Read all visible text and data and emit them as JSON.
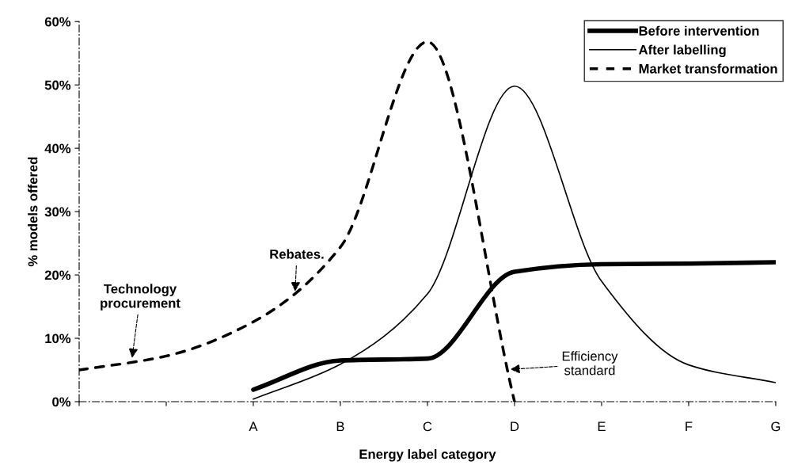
{
  "chart_data": {
    "type": "line",
    "xlabel": "Energy label category",
    "ylabel": "% models offered",
    "categories": [
      null,
      null,
      "A",
      "B",
      "C",
      "D",
      "E",
      "F",
      "G"
    ],
    "ylim": [
      0,
      60
    ],
    "yticks": [
      {
        "value": 0,
        "label": "0%"
      },
      {
        "value": 10,
        "label": "10%"
      },
      {
        "value": 20,
        "label": "20%"
      },
      {
        "value": 30,
        "label": "30%"
      },
      {
        "value": 40,
        "label": "40%"
      },
      {
        "value": 50,
        "label": "50%"
      },
      {
        "value": 60,
        "label": "60%"
      }
    ],
    "grid": false,
    "legend": "top right",
    "marker": "none",
    "series": [
      {
        "name": "Before intervention",
        "color": "#000000",
        "line_style": "solid",
        "values": [
          null,
          null,
          1.9,
          6.5,
          6.8,
          20.5,
          21.7,
          21.8,
          22.0
        ]
      },
      {
        "name": "After labelling",
        "color": "#000000",
        "line_style": "solid",
        "values": [
          null,
          null,
          0.4,
          5.9,
          17,
          49.8,
          19,
          5.8,
          3.0
        ]
      },
      {
        "name": "Market transformation",
        "color": "#000000",
        "line_style": "dashed",
        "values": [
          5.0,
          7.2,
          12.6,
          24.4,
          56.8,
          0,
          null,
          null,
          null
        ]
      }
    ],
    "annotations": [
      {
        "text": "Rebates.",
        "y": 17.4
      },
      "Technology\nprocurement",
      "Efficiency\nstandard"
    ]
  }
}
